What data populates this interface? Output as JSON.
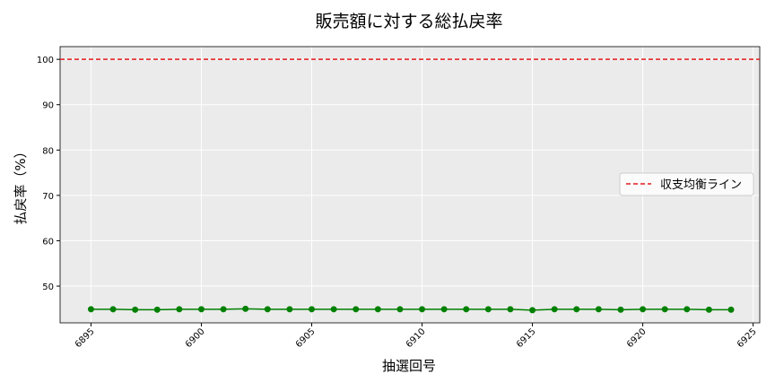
{
  "chart_data": {
    "type": "line",
    "title": "販売額に対する総払戻率",
    "x_label": "抽選回号",
    "y_label": "払戻率（%）",
    "x": [
      6895,
      6896,
      6897,
      6898,
      6899,
      6900,
      6901,
      6902,
      6903,
      6904,
      6905,
      6906,
      6907,
      6908,
      6909,
      6910,
      6911,
      6912,
      6913,
      6914,
      6915,
      6916,
      6917,
      6918,
      6919,
      6920,
      6921,
      6922,
      6923,
      6924
    ],
    "series": [
      {
        "color": "#008000",
        "values": [
          44.9,
          44.9,
          44.8,
          44.8,
          44.9,
          44.9,
          44.9,
          45.0,
          44.9,
          44.9,
          44.9,
          44.9,
          44.9,
          44.9,
          44.9,
          44.9,
          44.9,
          44.9,
          44.9,
          44.9,
          44.7,
          44.9,
          44.9,
          44.9,
          44.8,
          44.9,
          44.9,
          44.9,
          44.8,
          44.8
        ]
      }
    ],
    "reference_lines": [
      {
        "value": 100,
        "label": "収支均衡ライン",
        "color": "#e41a1c"
      }
    ],
    "xlim": [
      6893.6,
      6925.3
    ],
    "xticks": [
      6895,
      6900,
      6905,
      6910,
      6915,
      6920,
      6925
    ],
    "ylim": [
      41.9,
      102.8
    ],
    "yticks": [
      50,
      60,
      70,
      80,
      90,
      100
    ],
    "grid": true,
    "legend_position": "right"
  }
}
